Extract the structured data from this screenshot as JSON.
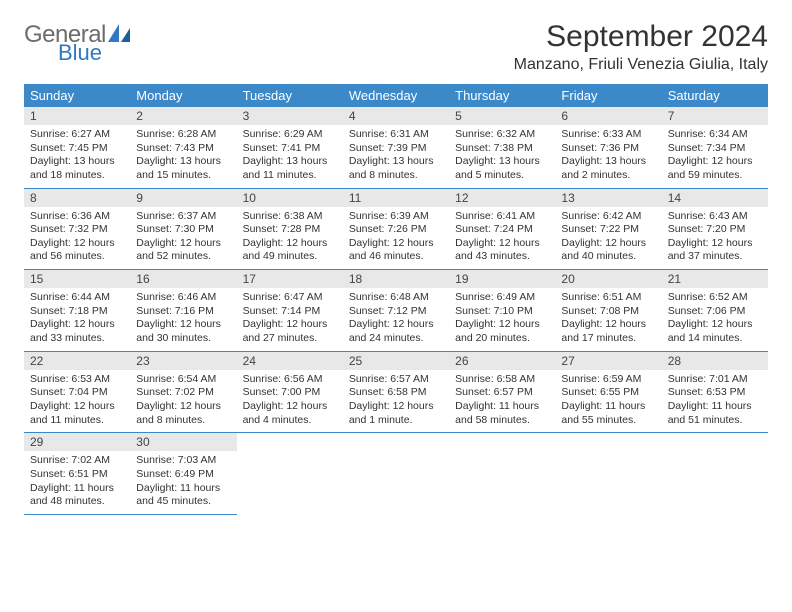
{
  "logo": {
    "line1": "General",
    "line2": "Blue"
  },
  "title": "September 2024",
  "location": "Manzano, Friuli Venezia Giulia, Italy",
  "colors": {
    "header_bg": "#3b89c9",
    "header_text": "#ffffff",
    "daynum_bg": "#e8e8e8",
    "border": "#3b89c9",
    "logo_gray": "#6c6c6c",
    "logo_blue": "#2f78c2",
    "text": "#333333",
    "background": "#ffffff"
  },
  "weekdays": [
    "Sunday",
    "Monday",
    "Tuesday",
    "Wednesday",
    "Thursday",
    "Friday",
    "Saturday"
  ],
  "layout": {
    "cols": 7,
    "rows": 5,
    "fontsize_title": 30,
    "fontsize_location": 16,
    "fontsize_head": 13,
    "fontsize_detail": 10.5
  },
  "days": [
    {
      "n": "1",
      "sunrise": "6:27 AM",
      "sunset": "7:45 PM",
      "daylight": "13 hours and 18 minutes."
    },
    {
      "n": "2",
      "sunrise": "6:28 AM",
      "sunset": "7:43 PM",
      "daylight": "13 hours and 15 minutes."
    },
    {
      "n": "3",
      "sunrise": "6:29 AM",
      "sunset": "7:41 PM",
      "daylight": "13 hours and 11 minutes."
    },
    {
      "n": "4",
      "sunrise": "6:31 AM",
      "sunset": "7:39 PM",
      "daylight": "13 hours and 8 minutes."
    },
    {
      "n": "5",
      "sunrise": "6:32 AM",
      "sunset": "7:38 PM",
      "daylight": "13 hours and 5 minutes."
    },
    {
      "n": "6",
      "sunrise": "6:33 AM",
      "sunset": "7:36 PM",
      "daylight": "13 hours and 2 minutes."
    },
    {
      "n": "7",
      "sunrise": "6:34 AM",
      "sunset": "7:34 PM",
      "daylight": "12 hours and 59 minutes."
    },
    {
      "n": "8",
      "sunrise": "6:36 AM",
      "sunset": "7:32 PM",
      "daylight": "12 hours and 56 minutes."
    },
    {
      "n": "9",
      "sunrise": "6:37 AM",
      "sunset": "7:30 PM",
      "daylight": "12 hours and 52 minutes."
    },
    {
      "n": "10",
      "sunrise": "6:38 AM",
      "sunset": "7:28 PM",
      "daylight": "12 hours and 49 minutes."
    },
    {
      "n": "11",
      "sunrise": "6:39 AM",
      "sunset": "7:26 PM",
      "daylight": "12 hours and 46 minutes."
    },
    {
      "n": "12",
      "sunrise": "6:41 AM",
      "sunset": "7:24 PM",
      "daylight": "12 hours and 43 minutes."
    },
    {
      "n": "13",
      "sunrise": "6:42 AM",
      "sunset": "7:22 PM",
      "daylight": "12 hours and 40 minutes."
    },
    {
      "n": "14",
      "sunrise": "6:43 AM",
      "sunset": "7:20 PM",
      "daylight": "12 hours and 37 minutes."
    },
    {
      "n": "15",
      "sunrise": "6:44 AM",
      "sunset": "7:18 PM",
      "daylight": "12 hours and 33 minutes."
    },
    {
      "n": "16",
      "sunrise": "6:46 AM",
      "sunset": "7:16 PM",
      "daylight": "12 hours and 30 minutes."
    },
    {
      "n": "17",
      "sunrise": "6:47 AM",
      "sunset": "7:14 PM",
      "daylight": "12 hours and 27 minutes."
    },
    {
      "n": "18",
      "sunrise": "6:48 AM",
      "sunset": "7:12 PM",
      "daylight": "12 hours and 24 minutes."
    },
    {
      "n": "19",
      "sunrise": "6:49 AM",
      "sunset": "7:10 PM",
      "daylight": "12 hours and 20 minutes."
    },
    {
      "n": "20",
      "sunrise": "6:51 AM",
      "sunset": "7:08 PM",
      "daylight": "12 hours and 17 minutes."
    },
    {
      "n": "21",
      "sunrise": "6:52 AM",
      "sunset": "7:06 PM",
      "daylight": "12 hours and 14 minutes."
    },
    {
      "n": "22",
      "sunrise": "6:53 AM",
      "sunset": "7:04 PM",
      "daylight": "12 hours and 11 minutes."
    },
    {
      "n": "23",
      "sunrise": "6:54 AM",
      "sunset": "7:02 PM",
      "daylight": "12 hours and 8 minutes."
    },
    {
      "n": "24",
      "sunrise": "6:56 AM",
      "sunset": "7:00 PM",
      "daylight": "12 hours and 4 minutes."
    },
    {
      "n": "25",
      "sunrise": "6:57 AM",
      "sunset": "6:58 PM",
      "daylight": "12 hours and 1 minute."
    },
    {
      "n": "26",
      "sunrise": "6:58 AM",
      "sunset": "6:57 PM",
      "daylight": "11 hours and 58 minutes."
    },
    {
      "n": "27",
      "sunrise": "6:59 AM",
      "sunset": "6:55 PM",
      "daylight": "11 hours and 55 minutes."
    },
    {
      "n": "28",
      "sunrise": "7:01 AM",
      "sunset": "6:53 PM",
      "daylight": "11 hours and 51 minutes."
    },
    {
      "n": "29",
      "sunrise": "7:02 AM",
      "sunset": "6:51 PM",
      "daylight": "11 hours and 48 minutes."
    },
    {
      "n": "30",
      "sunrise": "7:03 AM",
      "sunset": "6:49 PM",
      "daylight": "11 hours and 45 minutes."
    }
  ],
  "labels": {
    "sunrise": "Sunrise:",
    "sunset": "Sunset:",
    "daylight": "Daylight:"
  }
}
